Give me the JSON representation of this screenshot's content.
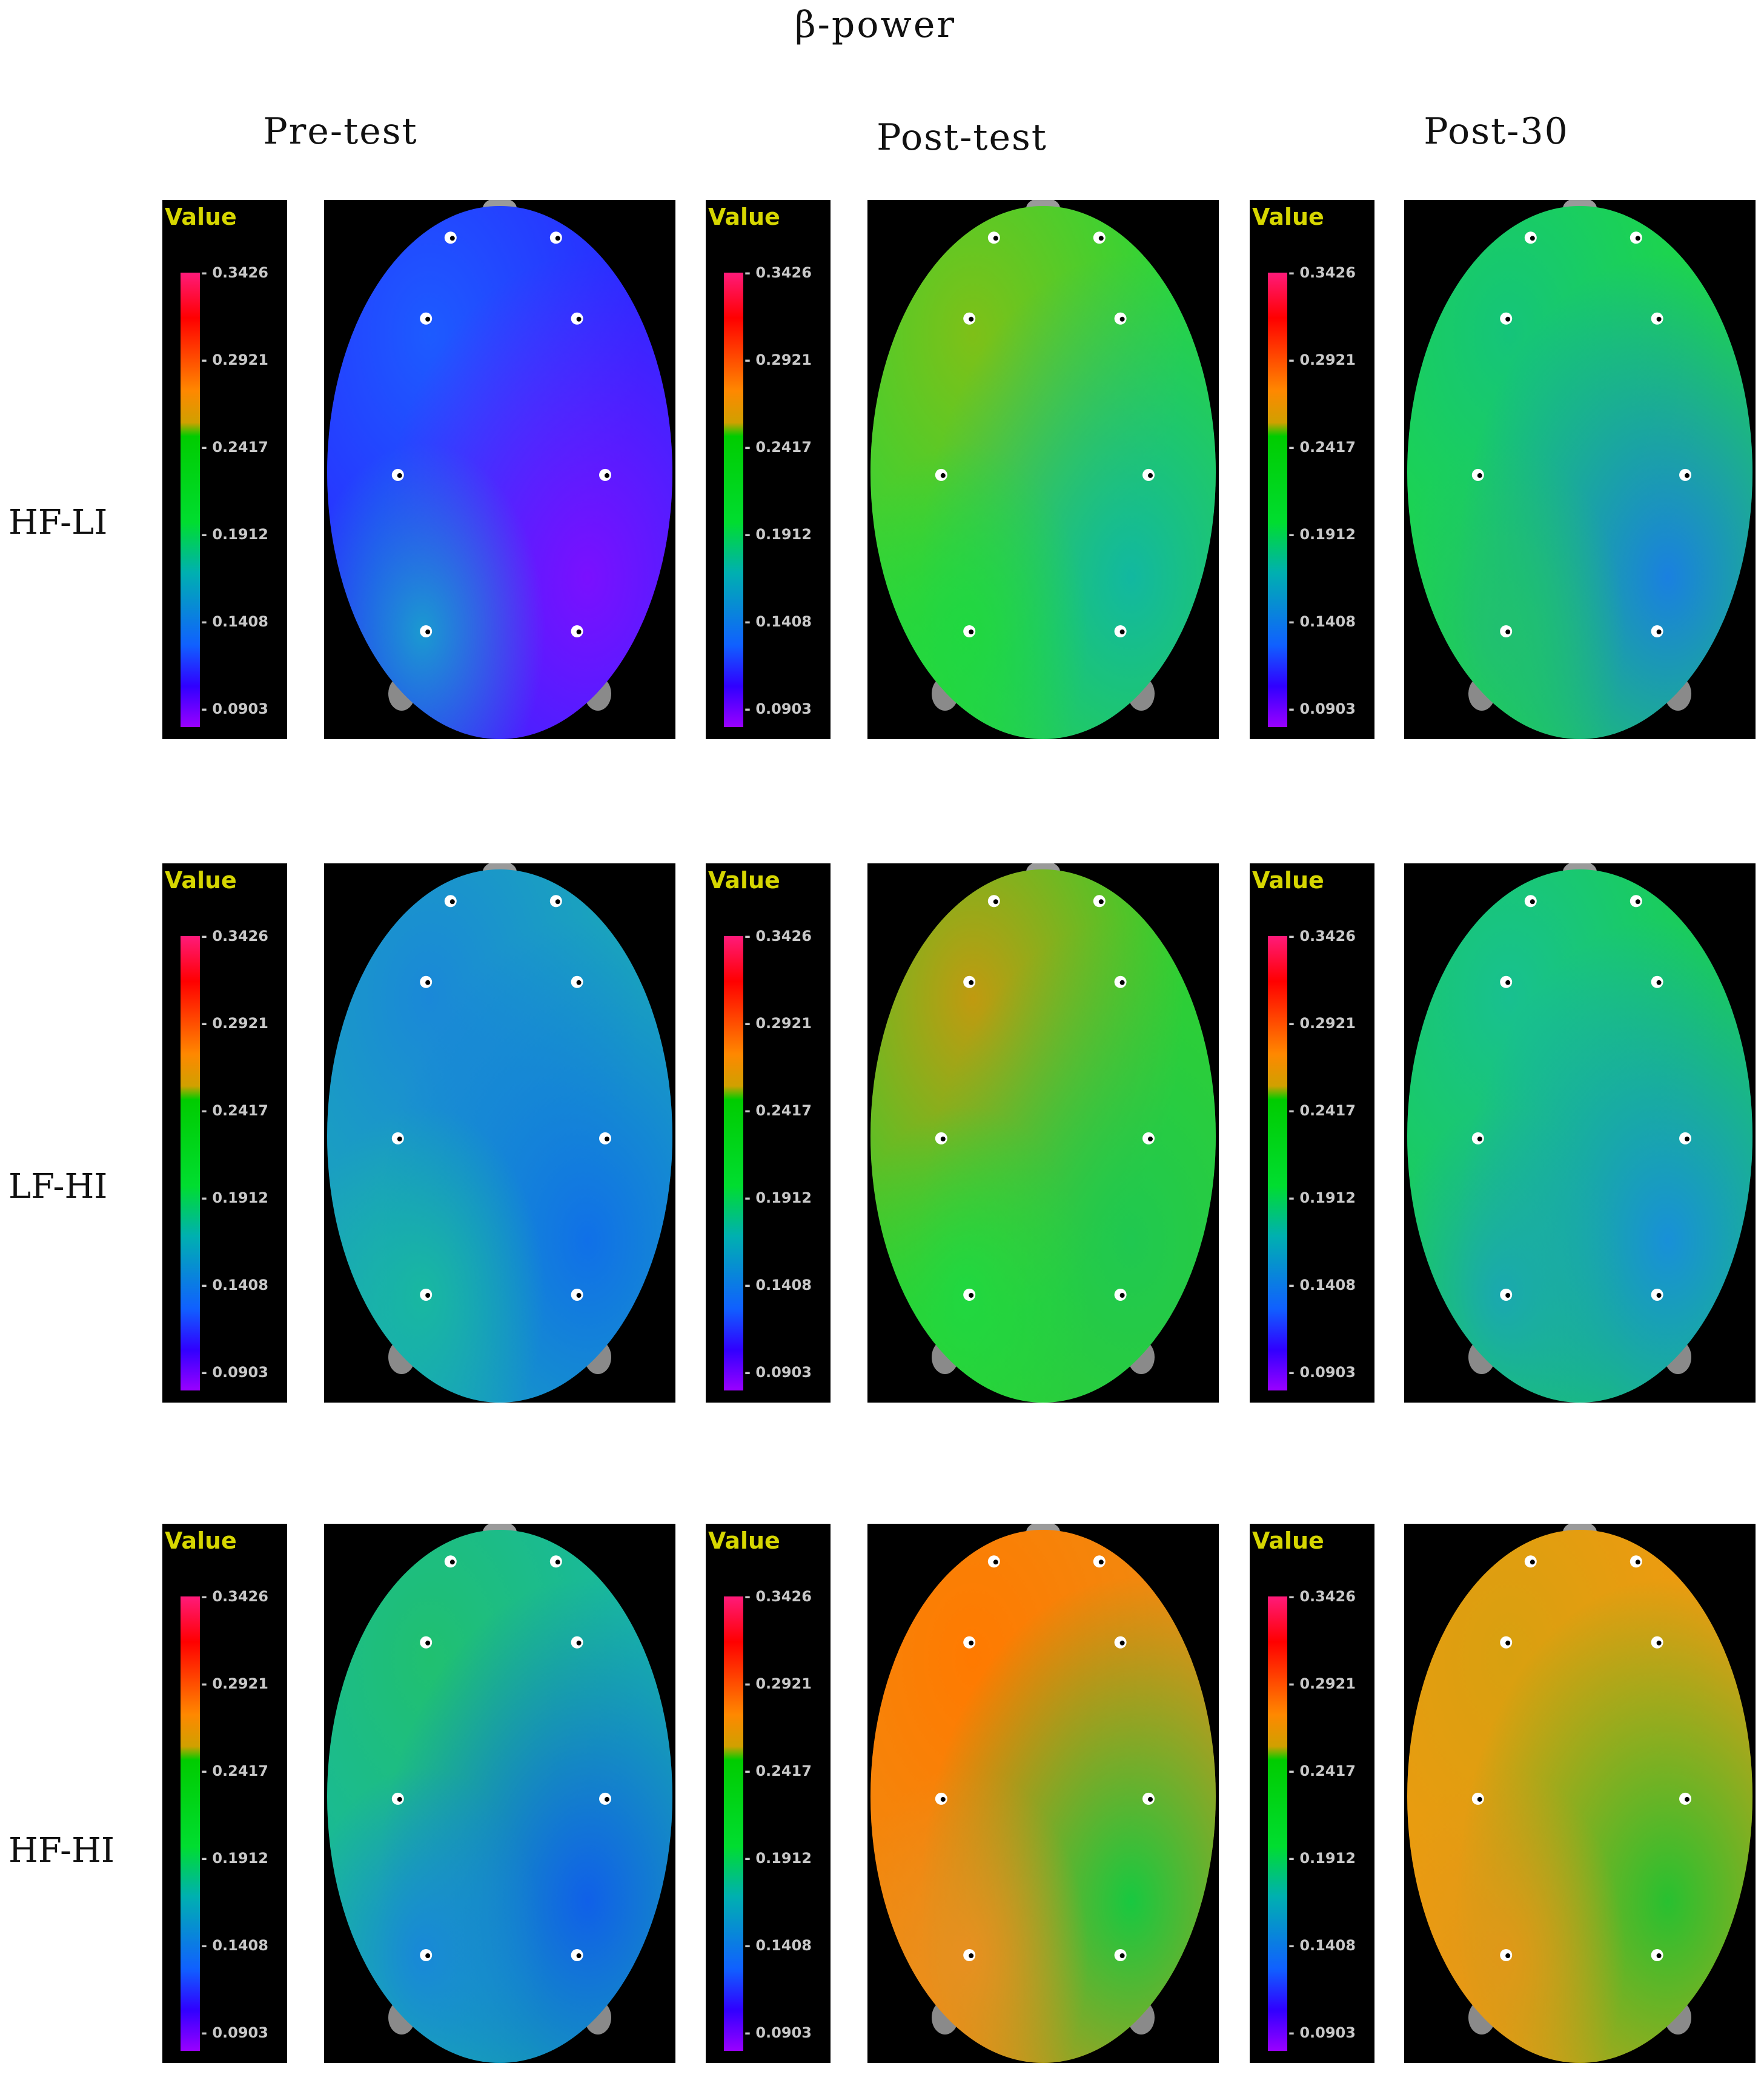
{
  "title": "β-power",
  "columns": [
    {
      "label": "Pre-test"
    },
    {
      "label": "Post-test"
    },
    {
      "label": "Post-30"
    }
  ],
  "rows": [
    {
      "label": "HF-LI"
    },
    {
      "label": "LF-HI"
    },
    {
      "label": "HF-HI"
    }
  ],
  "legend": {
    "title": "Value",
    "ticks": [
      "0.3426",
      "0.2921",
      "0.2417",
      "0.1912",
      "0.1408",
      "0.0903"
    ],
    "colors": [
      "#ff1a7a",
      "#ff0000",
      "#ff8800",
      "#00cc00",
      "#00b0b0",
      "#1060ff",
      "#9a00ff"
    ]
  },
  "maps": [
    [
      {
        "dominant": "blue-violet",
        "colors": [
          "#2a2aff",
          "#1d5bff",
          "#7a10ff",
          "#1a9ad0"
        ]
      },
      {
        "dominant": "green",
        "colors": [
          "#2ad63a",
          "#7ec018",
          "#12b8a0",
          "#20d840"
        ]
      },
      {
        "dominant": "green",
        "colors": [
          "#1ed844",
          "#15c47a",
          "#1a80e0",
          "#20c070"
        ]
      }
    ],
    [
      {
        "dominant": "blue-cyan",
        "colors": [
          "#1aa8b8",
          "#1a88d8",
          "#1070e8",
          "#18b8a0"
        ]
      },
      {
        "dominant": "green",
        "colors": [
          "#30d030",
          "#c09a10",
          "#20c850",
          "#20d840"
        ]
      },
      {
        "dominant": "green-cyan",
        "colors": [
          "#1ad050",
          "#18c090",
          "#1890d8",
          "#1aa8b0"
        ]
      }
    ],
    [
      {
        "dominant": "cyan-blue",
        "colors": [
          "#18b8a0",
          "#20c070",
          "#1060e8",
          "#1888d8"
        ]
      },
      {
        "dominant": "orange",
        "colors": [
          "#f08a10",
          "#ff7a00",
          "#18c840",
          "#e89020"
        ]
      },
      {
        "dominant": "orange",
        "colors": [
          "#f09a10",
          "#d8a010",
          "#28c030",
          "#e09818"
        ]
      }
    ]
  ]
}
